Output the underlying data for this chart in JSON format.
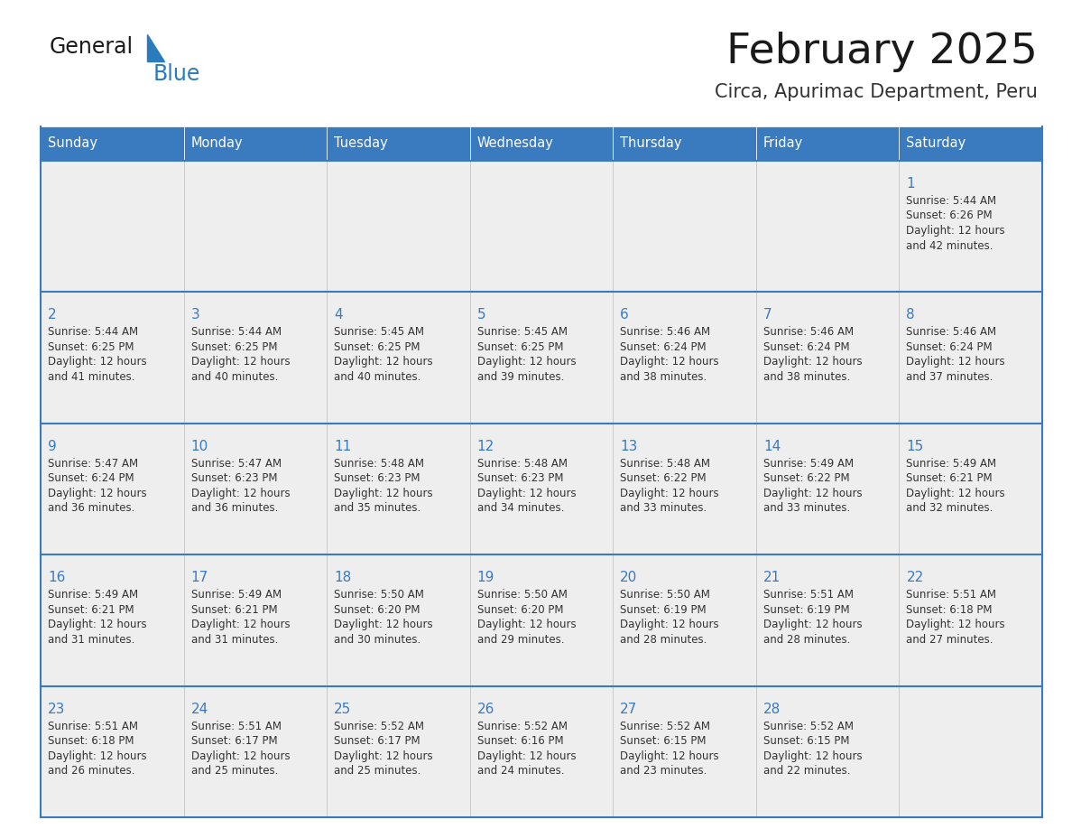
{
  "title": "February 2025",
  "subtitle": "Circa, Apurimac Department, Peru",
  "days_of_week": [
    "Sunday",
    "Monday",
    "Tuesday",
    "Wednesday",
    "Thursday",
    "Friday",
    "Saturday"
  ],
  "header_bg": "#3a7abf",
  "header_text": "#ffffff",
  "cell_bg": "#eeeeee",
  "border_color": "#3a7abf",
  "cell_border_color": "#aaaaaa",
  "day_number_color": "#3a7abf",
  "text_color": "#333333",
  "title_color": "#1a1a1a",
  "subtitle_color": "#333333",
  "logo_general_color": "#1a1a1a",
  "logo_blue_color": "#2b7bbf",
  "calendar_data": [
    [
      null,
      null,
      null,
      null,
      null,
      null,
      {
        "day": 1,
        "sunrise": "5:44 AM",
        "sunset": "6:26 PM",
        "daylight_line1": "Daylight: 12 hours",
        "daylight_line2": "and 42 minutes."
      }
    ],
    [
      {
        "day": 2,
        "sunrise": "5:44 AM",
        "sunset": "6:25 PM",
        "daylight_line1": "Daylight: 12 hours",
        "daylight_line2": "and 41 minutes."
      },
      {
        "day": 3,
        "sunrise": "5:44 AM",
        "sunset": "6:25 PM",
        "daylight_line1": "Daylight: 12 hours",
        "daylight_line2": "and 40 minutes."
      },
      {
        "day": 4,
        "sunrise": "5:45 AM",
        "sunset": "6:25 PM",
        "daylight_line1": "Daylight: 12 hours",
        "daylight_line2": "and 40 minutes."
      },
      {
        "day": 5,
        "sunrise": "5:45 AM",
        "sunset": "6:25 PM",
        "daylight_line1": "Daylight: 12 hours",
        "daylight_line2": "and 39 minutes."
      },
      {
        "day": 6,
        "sunrise": "5:46 AM",
        "sunset": "6:24 PM",
        "daylight_line1": "Daylight: 12 hours",
        "daylight_line2": "and 38 minutes."
      },
      {
        "day": 7,
        "sunrise": "5:46 AM",
        "sunset": "6:24 PM",
        "daylight_line1": "Daylight: 12 hours",
        "daylight_line2": "and 38 minutes."
      },
      {
        "day": 8,
        "sunrise": "5:46 AM",
        "sunset": "6:24 PM",
        "daylight_line1": "Daylight: 12 hours",
        "daylight_line2": "and 37 minutes."
      }
    ],
    [
      {
        "day": 9,
        "sunrise": "5:47 AM",
        "sunset": "6:24 PM",
        "daylight_line1": "Daylight: 12 hours",
        "daylight_line2": "and 36 minutes."
      },
      {
        "day": 10,
        "sunrise": "5:47 AM",
        "sunset": "6:23 PM",
        "daylight_line1": "Daylight: 12 hours",
        "daylight_line2": "and 36 minutes."
      },
      {
        "day": 11,
        "sunrise": "5:48 AM",
        "sunset": "6:23 PM",
        "daylight_line1": "Daylight: 12 hours",
        "daylight_line2": "and 35 minutes."
      },
      {
        "day": 12,
        "sunrise": "5:48 AM",
        "sunset": "6:23 PM",
        "daylight_line1": "Daylight: 12 hours",
        "daylight_line2": "and 34 minutes."
      },
      {
        "day": 13,
        "sunrise": "5:48 AM",
        "sunset": "6:22 PM",
        "daylight_line1": "Daylight: 12 hours",
        "daylight_line2": "and 33 minutes."
      },
      {
        "day": 14,
        "sunrise": "5:49 AM",
        "sunset": "6:22 PM",
        "daylight_line1": "Daylight: 12 hours",
        "daylight_line2": "and 33 minutes."
      },
      {
        "day": 15,
        "sunrise": "5:49 AM",
        "sunset": "6:21 PM",
        "daylight_line1": "Daylight: 12 hours",
        "daylight_line2": "and 32 minutes."
      }
    ],
    [
      {
        "day": 16,
        "sunrise": "5:49 AM",
        "sunset": "6:21 PM",
        "daylight_line1": "Daylight: 12 hours",
        "daylight_line2": "and 31 minutes."
      },
      {
        "day": 17,
        "sunrise": "5:49 AM",
        "sunset": "6:21 PM",
        "daylight_line1": "Daylight: 12 hours",
        "daylight_line2": "and 31 minutes."
      },
      {
        "day": 18,
        "sunrise": "5:50 AM",
        "sunset": "6:20 PM",
        "daylight_line1": "Daylight: 12 hours",
        "daylight_line2": "and 30 minutes."
      },
      {
        "day": 19,
        "sunrise": "5:50 AM",
        "sunset": "6:20 PM",
        "daylight_line1": "Daylight: 12 hours",
        "daylight_line2": "and 29 minutes."
      },
      {
        "day": 20,
        "sunrise": "5:50 AM",
        "sunset": "6:19 PM",
        "daylight_line1": "Daylight: 12 hours",
        "daylight_line2": "and 28 minutes."
      },
      {
        "day": 21,
        "sunrise": "5:51 AM",
        "sunset": "6:19 PM",
        "daylight_line1": "Daylight: 12 hours",
        "daylight_line2": "and 28 minutes."
      },
      {
        "day": 22,
        "sunrise": "5:51 AM",
        "sunset": "6:18 PM",
        "daylight_line1": "Daylight: 12 hours",
        "daylight_line2": "and 27 minutes."
      }
    ],
    [
      {
        "day": 23,
        "sunrise": "5:51 AM",
        "sunset": "6:18 PM",
        "daylight_line1": "Daylight: 12 hours",
        "daylight_line2": "and 26 minutes."
      },
      {
        "day": 24,
        "sunrise": "5:51 AM",
        "sunset": "6:17 PM",
        "daylight_line1": "Daylight: 12 hours",
        "daylight_line2": "and 25 minutes."
      },
      {
        "day": 25,
        "sunrise": "5:52 AM",
        "sunset": "6:17 PM",
        "daylight_line1": "Daylight: 12 hours",
        "daylight_line2": "and 25 minutes."
      },
      {
        "day": 26,
        "sunrise": "5:52 AM",
        "sunset": "6:16 PM",
        "daylight_line1": "Daylight: 12 hours",
        "daylight_line2": "and 24 minutes."
      },
      {
        "day": 27,
        "sunrise": "5:52 AM",
        "sunset": "6:15 PM",
        "daylight_line1": "Daylight: 12 hours",
        "daylight_line2": "and 23 minutes."
      },
      {
        "day": 28,
        "sunrise": "5:52 AM",
        "sunset": "6:15 PM",
        "daylight_line1": "Daylight: 12 hours",
        "daylight_line2": "and 22 minutes."
      },
      null
    ]
  ],
  "num_rows": 5,
  "num_cols": 7
}
